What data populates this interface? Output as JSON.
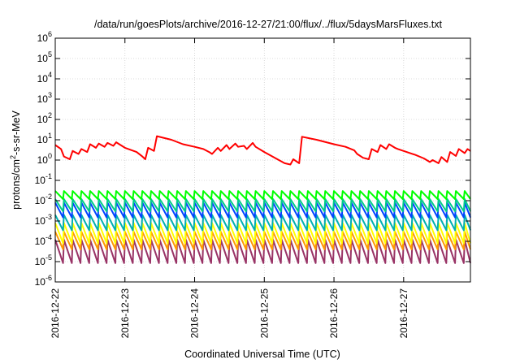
{
  "chart_data": {
    "type": "line",
    "title": "/data/run/goesPlots/archive/2016-12-27/21:00/flux/../flux/5daysMarsFluxes.txt",
    "xlabel": "Coordinated Universal Time (UTC)",
    "ylabel": {
      "prefix": "protons/cm",
      "sup": "2",
      "suffix": "-s-sr-MeV"
    },
    "y_scale": "log",
    "ylim": [
      1e-06,
      1000000.0
    ],
    "y_ticks": [
      {
        "value": 1e-06,
        "base": "10",
        "exp": "-6"
      },
      {
        "value": 1e-05,
        "base": "10",
        "exp": "-5"
      },
      {
        "value": 0.0001,
        "base": "10",
        "exp": "-4"
      },
      {
        "value": 0.001,
        "base": "10",
        "exp": "-3"
      },
      {
        "value": 0.01,
        "base": "10",
        "exp": "-2"
      },
      {
        "value": 0.1,
        "base": "10",
        "exp": "-1"
      },
      {
        "value": 1,
        "base": "10",
        "exp": "0"
      },
      {
        "value": 10,
        "base": "10",
        "exp": "1"
      },
      {
        "value": 100,
        "base": "10",
        "exp": "2"
      },
      {
        "value": 1000,
        "base": "10",
        "exp": "3"
      },
      {
        "value": 10000,
        "base": "10",
        "exp": "4"
      },
      {
        "value": 100000,
        "base": "10",
        "exp": "5"
      },
      {
        "value": 1000000,
        "base": "10",
        "exp": "6"
      }
    ],
    "xlim": [
      "2016-12-22T00:00",
      "2016-12-27T23:00"
    ],
    "x_ticks": [
      "2016-12-22",
      "2016-12-23",
      "2016-12-24",
      "2016-12-25",
      "2016-12-26",
      "2016-12-27"
    ],
    "grid": true,
    "legend": "none",
    "series": [
      {
        "color": "#ff0000",
        "x": [
          "2016-12-22T00:00",
          "2016-12-22T02:00",
          "2016-12-22T03:00",
          "2016-12-22T05:00",
          "2016-12-22T06:00",
          "2016-12-22T08:00",
          "2016-12-22T09:00",
          "2016-12-22T11:00",
          "2016-12-22T12:00",
          "2016-12-22T14:00",
          "2016-12-22T15:00",
          "2016-12-22T17:00",
          "2016-12-22T18:00",
          "2016-12-22T20:00",
          "2016-12-22T21:00",
          "2016-12-23T00:00",
          "2016-12-23T04:00",
          "2016-12-23T06:00",
          "2016-12-23T07:00",
          "2016-12-23T08:00",
          "2016-12-23T10:00",
          "2016-12-23T11:00",
          "2016-12-23T16:00",
          "2016-12-23T20:00",
          "2016-12-24T00:00",
          "2016-12-24T03:00",
          "2016-12-24T05:00",
          "2016-12-24T06:00",
          "2016-12-24T08:00",
          "2016-12-24T09:00",
          "2016-12-24T11:00",
          "2016-12-24T12:00",
          "2016-12-24T14:00",
          "2016-12-24T15:00",
          "2016-12-24T17:00",
          "2016-12-24T18:00",
          "2016-12-24T20:00",
          "2016-12-24T21:00",
          "2016-12-25T00:00",
          "2016-12-25T04:00",
          "2016-12-25T07:00",
          "2016-12-25T09:00",
          "2016-12-25T10:00",
          "2016-12-25T12:00",
          "2016-12-25T13:00",
          "2016-12-25T18:00",
          "2016-12-26T00:00",
          "2016-12-26T04:00",
          "2016-12-26T07:00",
          "2016-12-26T08:00",
          "2016-12-26T10:00",
          "2016-12-26T12:00",
          "2016-12-26T13:00",
          "2016-12-26T15:00",
          "2016-12-26T16:00",
          "2016-12-26T18:00",
          "2016-12-26T19:00",
          "2016-12-26T21:00",
          "2016-12-26T22:00",
          "2016-12-27T00:00",
          "2016-12-27T04:00",
          "2016-12-27T07:00",
          "2016-12-27T09:00",
          "2016-12-27T10:00",
          "2016-12-27T12:00",
          "2016-12-27T13:00",
          "2016-12-27T15:00",
          "2016-12-27T16:00",
          "2016-12-27T18:00",
          "2016-12-27T19:00",
          "2016-12-27T21:00",
          "2016-12-27T22:00",
          "2016-12-27T23:00"
        ],
        "y": [
          5.5,
          3.5,
          1.5,
          1.1,
          2.8,
          2.0,
          3.5,
          2.5,
          6.0,
          4.0,
          6.5,
          4.5,
          7.0,
          5.0,
          7.5,
          4.0,
          2.5,
          1.5,
          1.1,
          4.0,
          2.8,
          15,
          10,
          6.0,
          4.5,
          3.5,
          2.5,
          2.0,
          4.0,
          2.8,
          5.5,
          3.5,
          6.5,
          4.5,
          5.0,
          3.5,
          7.0,
          4.5,
          2.5,
          1.2,
          0.7,
          0.6,
          1.1,
          0.7,
          14,
          10,
          6.0,
          4.5,
          3.0,
          2.0,
          1.3,
          1.1,
          3.5,
          2.5,
          5.5,
          3.5,
          6.0,
          4.0,
          3.5,
          2.8,
          1.8,
          1.2,
          0.8,
          1.0,
          0.7,
          1.4,
          0.8,
          2.5,
          1.6,
          3.5,
          2.2,
          3.5,
          2.8
        ]
      },
      {
        "color": "#00ff00",
        "period_hours": 3,
        "peak": 0.03,
        "trough": 0.012
      },
      {
        "color": "#00cc88",
        "period_hours": 3,
        "peak": 0.012,
        "trough": 0.003
      },
      {
        "color": "#0044ff",
        "period_hours": 3,
        "peak": 0.008,
        "trough": 0.0015
      },
      {
        "color": "#00b0b0",
        "period_hours": 3,
        "peak": 0.002,
        "trough": 0.00035
      },
      {
        "color": "#ffff00",
        "period_hours": 3,
        "peak": 0.0008,
        "trough": 8e-05
      },
      {
        "color": "#ff9900",
        "period_hours": 3,
        "peak": 0.0003,
        "trough": 4e-05
      },
      {
        "color": "#993366",
        "period_hours": 3,
        "peak": 0.00012,
        "trough": 8.5e-06
      }
    ]
  }
}
